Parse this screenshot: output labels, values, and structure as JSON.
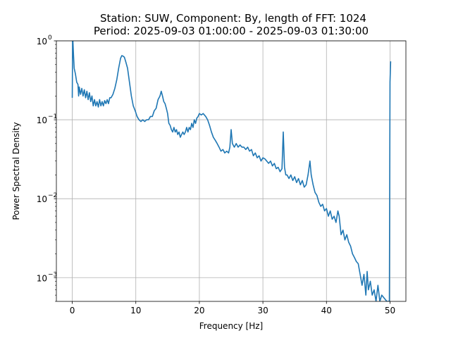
{
  "chart_data": {
    "type": "line",
    "title": "Station: SUW, Component: By, length of FFT: 1024",
    "subtitle": "Period: 2025-09-03 01:00:00 - 2025-09-03 01:30:00",
    "xlabel": "Frequency [Hz]",
    "ylabel": "Power Spectral Density",
    "xlim": [
      -2.5,
      52.5
    ],
    "ylim": [
      0.0005,
      1
    ],
    "yscale": "log",
    "grid": true,
    "line_color": "#1f77b4",
    "x_ticks": [
      0,
      10,
      20,
      30,
      40,
      50
    ],
    "x_tick_labels": [
      "0",
      "10",
      "20",
      "30",
      "40",
      "50"
    ],
    "y_ticks": [
      0.001,
      0.01,
      0.1,
      1
    ],
    "y_tick_labels": [
      {
        "base": "10",
        "exp": "−3"
      },
      {
        "base": "10",
        "exp": "−2"
      },
      {
        "base": "10",
        "exp": "−1"
      },
      {
        "base": "10",
        "exp": "0"
      }
    ],
    "series": [
      {
        "values": [
          [
            0.0,
            0.19
          ],
          [
            0.05,
            1.0
          ],
          [
            0.1,
            1.0
          ],
          [
            0.2,
            0.65
          ],
          [
            0.3,
            0.45
          ],
          [
            0.5,
            0.38
          ],
          [
            0.7,
            0.3
          ],
          [
            0.9,
            0.28
          ],
          [
            1.0,
            0.2
          ],
          [
            1.1,
            0.26
          ],
          [
            1.3,
            0.21
          ],
          [
            1.5,
            0.25
          ],
          [
            1.7,
            0.2
          ],
          [
            1.9,
            0.24
          ],
          [
            2.1,
            0.19
          ],
          [
            2.3,
            0.23
          ],
          [
            2.5,
            0.18
          ],
          [
            2.7,
            0.22
          ],
          [
            2.9,
            0.17
          ],
          [
            3.1,
            0.2
          ],
          [
            3.3,
            0.15
          ],
          [
            3.5,
            0.18
          ],
          [
            3.7,
            0.15
          ],
          [
            3.9,
            0.17
          ],
          [
            4.1,
            0.145
          ],
          [
            4.3,
            0.18
          ],
          [
            4.5,
            0.15
          ],
          [
            4.7,
            0.17
          ],
          [
            4.9,
            0.15
          ],
          [
            5.1,
            0.175
          ],
          [
            5.3,
            0.16
          ],
          [
            5.5,
            0.18
          ],
          [
            5.7,
            0.16
          ],
          [
            5.9,
            0.19
          ],
          [
            6.1,
            0.19
          ],
          [
            6.4,
            0.21
          ],
          [
            6.7,
            0.25
          ],
          [
            7.0,
            0.32
          ],
          [
            7.3,
            0.45
          ],
          [
            7.6,
            0.6
          ],
          [
            7.8,
            0.65
          ],
          [
            8.0,
            0.64
          ],
          [
            8.2,
            0.62
          ],
          [
            8.4,
            0.55
          ],
          [
            8.7,
            0.45
          ],
          [
            9.0,
            0.3
          ],
          [
            9.3,
            0.2
          ],
          [
            9.6,
            0.15
          ],
          [
            9.9,
            0.13
          ],
          [
            10.2,
            0.11
          ],
          [
            10.5,
            0.1
          ],
          [
            10.8,
            0.095
          ],
          [
            11.1,
            0.1
          ],
          [
            11.4,
            0.095
          ],
          [
            11.7,
            0.1
          ],
          [
            12.0,
            0.1
          ],
          [
            12.3,
            0.11
          ],
          [
            12.6,
            0.11
          ],
          [
            12.9,
            0.13
          ],
          [
            13.2,
            0.14
          ],
          [
            13.5,
            0.18
          ],
          [
            13.8,
            0.2
          ],
          [
            14.0,
            0.23
          ],
          [
            14.2,
            0.2
          ],
          [
            14.4,
            0.17
          ],
          [
            14.6,
            0.16
          ],
          [
            14.8,
            0.14
          ],
          [
            15.0,
            0.12
          ],
          [
            15.2,
            0.09
          ],
          [
            15.4,
            0.085
          ],
          [
            15.6,
            0.075
          ],
          [
            15.8,
            0.07
          ],
          [
            16.0,
            0.08
          ],
          [
            16.2,
            0.07
          ],
          [
            16.4,
            0.075
          ],
          [
            16.6,
            0.065
          ],
          [
            16.8,
            0.07
          ],
          [
            17.0,
            0.06
          ],
          [
            17.2,
            0.065
          ],
          [
            17.4,
            0.07
          ],
          [
            17.6,
            0.065
          ],
          [
            17.8,
            0.07
          ],
          [
            18.0,
            0.08
          ],
          [
            18.2,
            0.07
          ],
          [
            18.4,
            0.08
          ],
          [
            18.6,
            0.075
          ],
          [
            18.8,
            0.09
          ],
          [
            19.0,
            0.08
          ],
          [
            19.2,
            0.1
          ],
          [
            19.4,
            0.09
          ],
          [
            19.6,
            0.105
          ],
          [
            19.8,
            0.11
          ],
          [
            20.0,
            0.12
          ],
          [
            20.3,
            0.115
          ],
          [
            20.6,
            0.12
          ],
          [
            21.0,
            0.11
          ],
          [
            21.3,
            0.1
          ],
          [
            21.6,
            0.085
          ],
          [
            21.9,
            0.07
          ],
          [
            22.2,
            0.06
          ],
          [
            22.5,
            0.055
          ],
          [
            22.8,
            0.05
          ],
          [
            23.1,
            0.045
          ],
          [
            23.4,
            0.04
          ],
          [
            23.7,
            0.042
          ],
          [
            24.0,
            0.038
          ],
          [
            24.3,
            0.04
          ],
          [
            24.6,
            0.038
          ],
          [
            24.8,
            0.045
          ],
          [
            25.0,
            0.075
          ],
          [
            25.2,
            0.05
          ],
          [
            25.5,
            0.045
          ],
          [
            25.8,
            0.05
          ],
          [
            26.1,
            0.045
          ],
          [
            26.4,
            0.048
          ],
          [
            26.7,
            0.045
          ],
          [
            27.0,
            0.045
          ],
          [
            27.3,
            0.042
          ],
          [
            27.6,
            0.045
          ],
          [
            27.9,
            0.04
          ],
          [
            28.2,
            0.042
          ],
          [
            28.5,
            0.035
          ],
          [
            28.8,
            0.038
          ],
          [
            29.1,
            0.033
          ],
          [
            29.4,
            0.035
          ],
          [
            29.7,
            0.03
          ],
          [
            30.0,
            0.033
          ],
          [
            30.3,
            0.032
          ],
          [
            30.6,
            0.03
          ],
          [
            30.9,
            0.028
          ],
          [
            31.2,
            0.03
          ],
          [
            31.5,
            0.026
          ],
          [
            31.8,
            0.028
          ],
          [
            32.1,
            0.024
          ],
          [
            32.4,
            0.025
          ],
          [
            32.7,
            0.022
          ],
          [
            33.0,
            0.024
          ],
          [
            33.2,
            0.07
          ],
          [
            33.4,
            0.025
          ],
          [
            33.6,
            0.02
          ],
          [
            33.8,
            0.02
          ],
          [
            34.1,
            0.018
          ],
          [
            34.4,
            0.02
          ],
          [
            34.7,
            0.017
          ],
          [
            35.0,
            0.019
          ],
          [
            35.3,
            0.016
          ],
          [
            35.6,
            0.018
          ],
          [
            35.9,
            0.015
          ],
          [
            36.2,
            0.017
          ],
          [
            36.5,
            0.014
          ],
          [
            36.8,
            0.015
          ],
          [
            37.1,
            0.02
          ],
          [
            37.4,
            0.03
          ],
          [
            37.6,
            0.02
          ],
          [
            37.9,
            0.015
          ],
          [
            38.2,
            0.012
          ],
          [
            38.5,
            0.011
          ],
          [
            38.8,
            0.009
          ],
          [
            39.1,
            0.008
          ],
          [
            39.4,
            0.0085
          ],
          [
            39.7,
            0.007
          ],
          [
            40.0,
            0.0075
          ],
          [
            40.3,
            0.006
          ],
          [
            40.6,
            0.007
          ],
          [
            40.9,
            0.0055
          ],
          [
            41.2,
            0.006
          ],
          [
            41.5,
            0.005
          ],
          [
            41.8,
            0.007
          ],
          [
            42.0,
            0.006
          ],
          [
            42.3,
            0.0035
          ],
          [
            42.6,
            0.004
          ],
          [
            42.9,
            0.003
          ],
          [
            43.2,
            0.0035
          ],
          [
            43.5,
            0.0028
          ],
          [
            43.8,
            0.0025
          ],
          [
            44.1,
            0.002
          ],
          [
            44.4,
            0.0018
          ],
          [
            44.7,
            0.0016
          ],
          [
            45.0,
            0.0015
          ],
          [
            45.3,
            0.0011
          ],
          [
            45.6,
            0.0008
          ],
          [
            45.9,
            0.0011
          ],
          [
            46.2,
            0.0006
          ],
          [
            46.4,
            0.0012
          ],
          [
            46.6,
            0.0007
          ],
          [
            46.9,
            0.0009
          ],
          [
            47.2,
            0.0006
          ],
          [
            47.5,
            0.0007
          ],
          [
            47.8,
            0.0005
          ],
          [
            48.1,
            0.0008
          ],
          [
            48.4,
            0.0005
          ],
          [
            48.7,
            0.0006
          ],
          [
            49.5,
            0.0005
          ],
          [
            49.9,
            0.0005
          ],
          [
            50.0,
            0.3
          ],
          [
            50.1,
            0.55
          ]
        ]
      }
    ]
  }
}
